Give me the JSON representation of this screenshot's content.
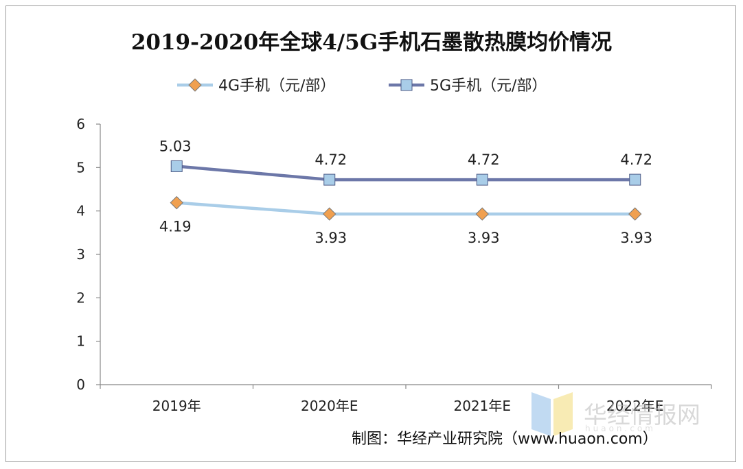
{
  "chart_data": {
    "type": "line",
    "title": "2019-2020年全球4/5G手机石墨散热膜均价情况",
    "categories": [
      "2019年",
      "2020年E",
      "2021年E",
      "2022年E"
    ],
    "series": [
      {
        "name": "4G手机（元/部）",
        "values": [
          4.19,
          3.93,
          3.93,
          3.93
        ],
        "labels": [
          "4.19",
          "3.93",
          "3.93",
          "3.93"
        ],
        "color": "#a9cde8",
        "marker": "diamond",
        "marker_color": "#f0a050"
      },
      {
        "name": "5G手机（元/部）",
        "values": [
          5.03,
          4.72,
          4.72,
          4.72
        ],
        "labels": [
          "5.03",
          "4.72",
          "4.72",
          "4.72"
        ],
        "color": "#6c77a8",
        "marker": "square",
        "marker_color": "#a9cde8"
      }
    ],
    "ylim": [
      0,
      6
    ],
    "yticks": [
      "0",
      "1",
      "2",
      "3",
      "4",
      "5",
      "6"
    ],
    "xlabel": "",
    "ylabel": "",
    "legend": "top",
    "grid": false
  },
  "source": "制图：华经产业研究院（www.huaon.com）",
  "watermark": {
    "text": "华经情报网",
    "sub": "huaon.com"
  }
}
